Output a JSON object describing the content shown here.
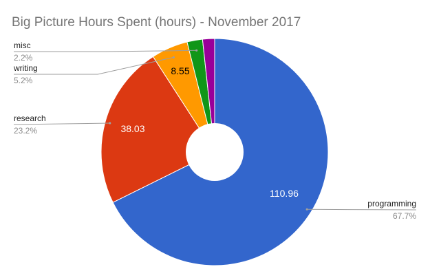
{
  "chart_data": {
    "type": "pie",
    "donut": true,
    "title": "Big Picture Hours Spent (hours) - November 2017",
    "legend": "none",
    "slices": [
      {
        "label": "programming",
        "value": 110.96,
        "percent": "67.7%",
        "color": "#3366cc",
        "value_label": "110.96",
        "value_label_color": "#ffffff"
      },
      {
        "label": "research",
        "value": 38.03,
        "percent": "23.2%",
        "color": "#dc3912",
        "value_label": "38.03",
        "value_label_color": "#ffffff"
      },
      {
        "label": "writing",
        "value": 8.55,
        "percent": "5.2%",
        "color": "#ff9900",
        "value_label": "8.55",
        "value_label_color": "#000000"
      },
      {
        "label": "misc",
        "value": 3.6,
        "percent": "2.2%",
        "color": "#109618",
        "value_label": "",
        "value_label_color": "#ffffff"
      },
      {
        "label": "",
        "value": 2.8,
        "percent": "",
        "color": "#990099",
        "value_label": "",
        "value_label_color": "#ffffff"
      }
    ]
  }
}
